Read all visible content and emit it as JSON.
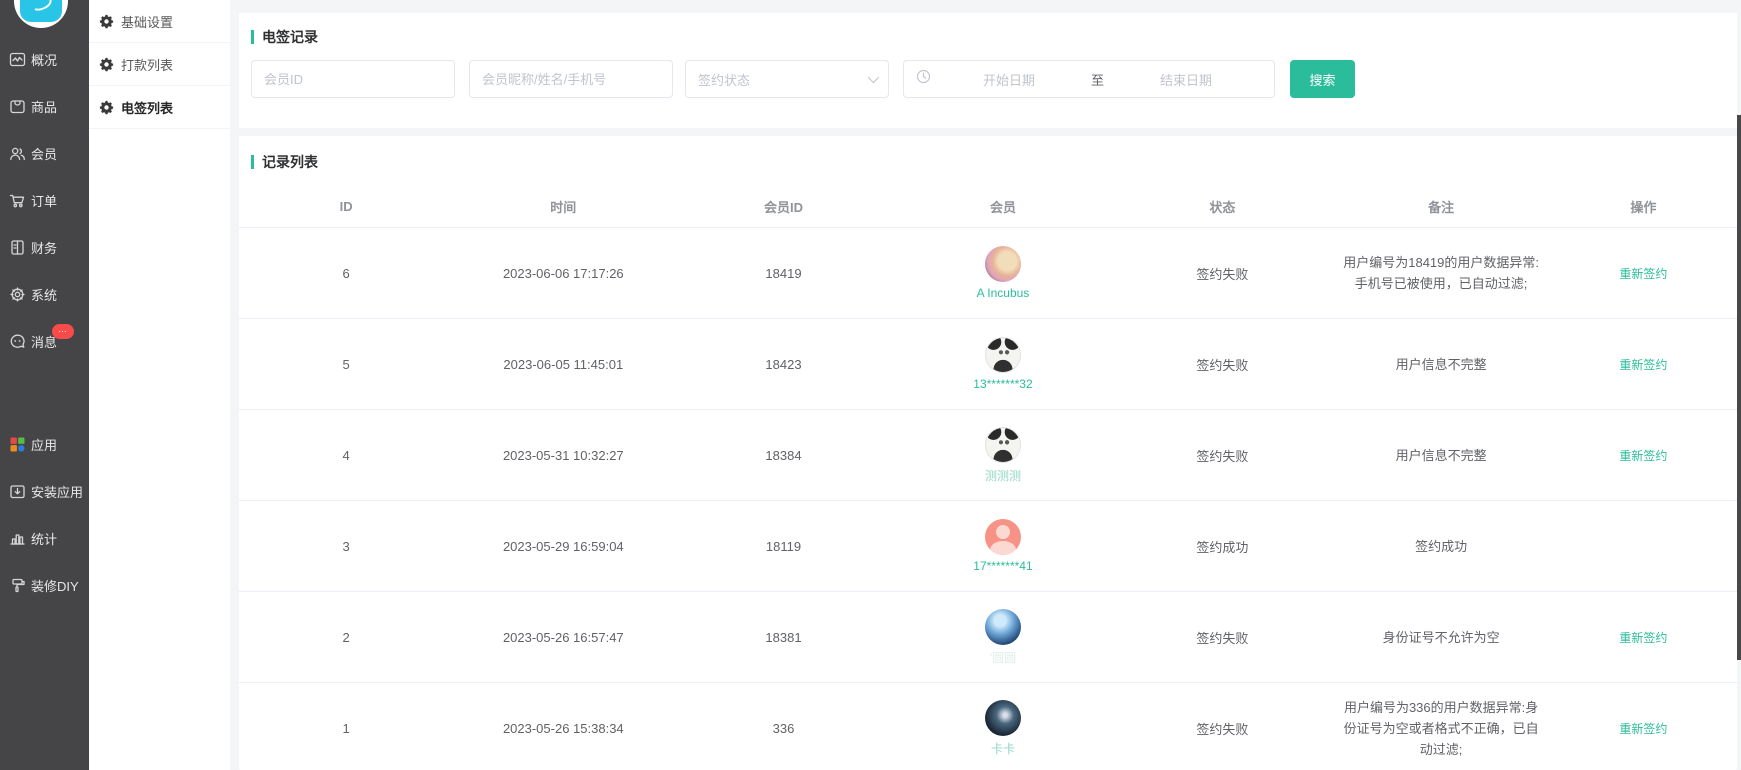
{
  "colors": {
    "accent": "#2bbd9b",
    "sidebar_bg": "#454548",
    "badge_bg": "#fa4b4b",
    "link": "#2bbd9b",
    "logo": "#29c5e6"
  },
  "sidebar": {
    "badge": "…",
    "items": [
      {
        "label": "概况"
      },
      {
        "label": "商品"
      },
      {
        "label": "会员"
      },
      {
        "label": "订单"
      },
      {
        "label": "财务"
      },
      {
        "label": "系统"
      },
      {
        "label": "消息"
      },
      {
        "label": "应用"
      },
      {
        "label": "安装应用"
      },
      {
        "label": "统计"
      },
      {
        "label": "装修DIY"
      }
    ]
  },
  "submenu": {
    "items": [
      {
        "label": "基础设置",
        "active": false
      },
      {
        "label": "打款列表",
        "active": false
      },
      {
        "label": "电签列表",
        "active": true
      }
    ]
  },
  "filters": {
    "section_title": "电签记录",
    "member_id_placeholder": "会员ID",
    "member_name_placeholder": "会员昵称/姓名/手机号",
    "sign_status_placeholder": "签约状态",
    "date_start_placeholder": "开始日期",
    "date_separator": "至",
    "date_end_placeholder": "结束日期",
    "search_label": "搜索"
  },
  "records": {
    "section_title": "记录列表",
    "columns": [
      "ID",
      "时间",
      "会员ID",
      "会员",
      "状态",
      "备注",
      "操作"
    ],
    "rows": [
      {
        "id": "6",
        "time": "2023-06-06 17:17:26",
        "member_id": "18419",
        "member_name": "A Incubus",
        "name_style": "normal",
        "avatar": "photo-dog",
        "status": "签约失败",
        "remark_lines": [
          "用户编号为18419的用户数据异常:",
          "手机号已被使用，已自动过滤;"
        ],
        "action": "重新签约"
      },
      {
        "id": "5",
        "time": "2023-06-05 11:45:01",
        "member_id": "18423",
        "member_name": "13*******32",
        "name_style": "normal",
        "avatar": "photo-panda",
        "status": "签约失败",
        "remark_lines": [
          "用户信息不完整"
        ],
        "action": "重新签约"
      },
      {
        "id": "4",
        "time": "2023-05-31 10:32:27",
        "member_id": "18384",
        "member_name": "测测测",
        "name_style": "light",
        "avatar": "photo-panda",
        "status": "签约失败",
        "remark_lines": [
          "用户信息不完整"
        ],
        "action": "重新签约"
      },
      {
        "id": "3",
        "time": "2023-05-29 16:59:04",
        "member_id": "18119",
        "member_name": "17*******41",
        "name_style": "normal",
        "avatar": "default-person",
        "status": "签约成功",
        "remark_lines": [
          "签约成功"
        ],
        "action": ""
      },
      {
        "id": "2",
        "time": "2023-05-26 16:57:47",
        "member_id": "18381",
        "member_name": "'圆圆",
        "name_style": "ultralight",
        "avatar": "photo-blue",
        "status": "签约失败",
        "remark_lines": [
          "身份证号不允许为空"
        ],
        "action": "重新签约"
      },
      {
        "id": "1",
        "time": "2023-05-26 15:38:34",
        "member_id": "336",
        "member_name": "卡卡",
        "name_style": "light",
        "avatar": "photo-night",
        "status": "签约失败",
        "remark_lines": [
          "用户编号为336的用户数据异常:身",
          "份证号为空或者格式不正确，已自",
          "动过滤;"
        ],
        "action": "重新签约"
      }
    ]
  }
}
